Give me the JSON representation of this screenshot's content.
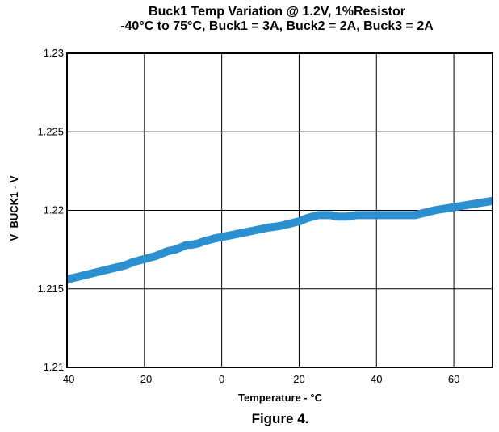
{
  "figure_caption": "Figure 4.",
  "chart_data": {
    "type": "line",
    "title": [
      "Buck1 Temp Variation @ 1.2V, 1%Resistor",
      "-40°C to 75°C, Buck1 = 3A, Buck2 = 2A, Buck3 = 2A"
    ],
    "xlabel": "Temperature - °C",
    "ylabel": "V_BUCK1 - V",
    "xlim": [
      -40,
      70
    ],
    "ylim": [
      1.21,
      1.23
    ],
    "x_ticks": [
      -40,
      -20,
      0,
      20,
      40,
      60
    ],
    "y_ticks": [
      1.21,
      1.215,
      1.22,
      1.225,
      1.23
    ],
    "x_tick_labels": [
      "-40",
      "-20",
      "0",
      "20",
      "40",
      "60"
    ],
    "y_tick_labels": [
      "1.21",
      "1.215",
      "1.22",
      "1.225",
      "1.23"
    ],
    "grid": true,
    "colors": {
      "series": "#2b8fd0",
      "grid": "#000000",
      "frame": "#000000"
    },
    "series": [
      {
        "x": [
          -40,
          -35,
          -30,
          -25,
          -23,
          -20,
          -17,
          -15,
          -14,
          -12,
          -10,
          -9,
          -8,
          -6,
          -5,
          -2,
          0,
          4,
          6,
          10,
          12,
          15,
          20,
          22,
          25,
          28,
          30,
          32,
          35,
          40,
          45,
          50,
          55,
          60,
          65,
          70
        ],
        "y": [
          1.2156,
          1.2159,
          1.2162,
          1.2165,
          1.2167,
          1.2169,
          1.2171,
          1.2173,
          1.2174,
          1.2175,
          1.2177,
          1.2178,
          1.2178,
          1.2179,
          1.218,
          1.2182,
          1.2183,
          1.2185,
          1.2186,
          1.2188,
          1.2189,
          1.219,
          1.2193,
          1.2195,
          1.2197,
          1.2197,
          1.2196,
          1.2196,
          1.2197,
          1.2197,
          1.2197,
          1.2197,
          1.22,
          1.2202,
          1.2204,
          1.2206
        ]
      }
    ]
  }
}
